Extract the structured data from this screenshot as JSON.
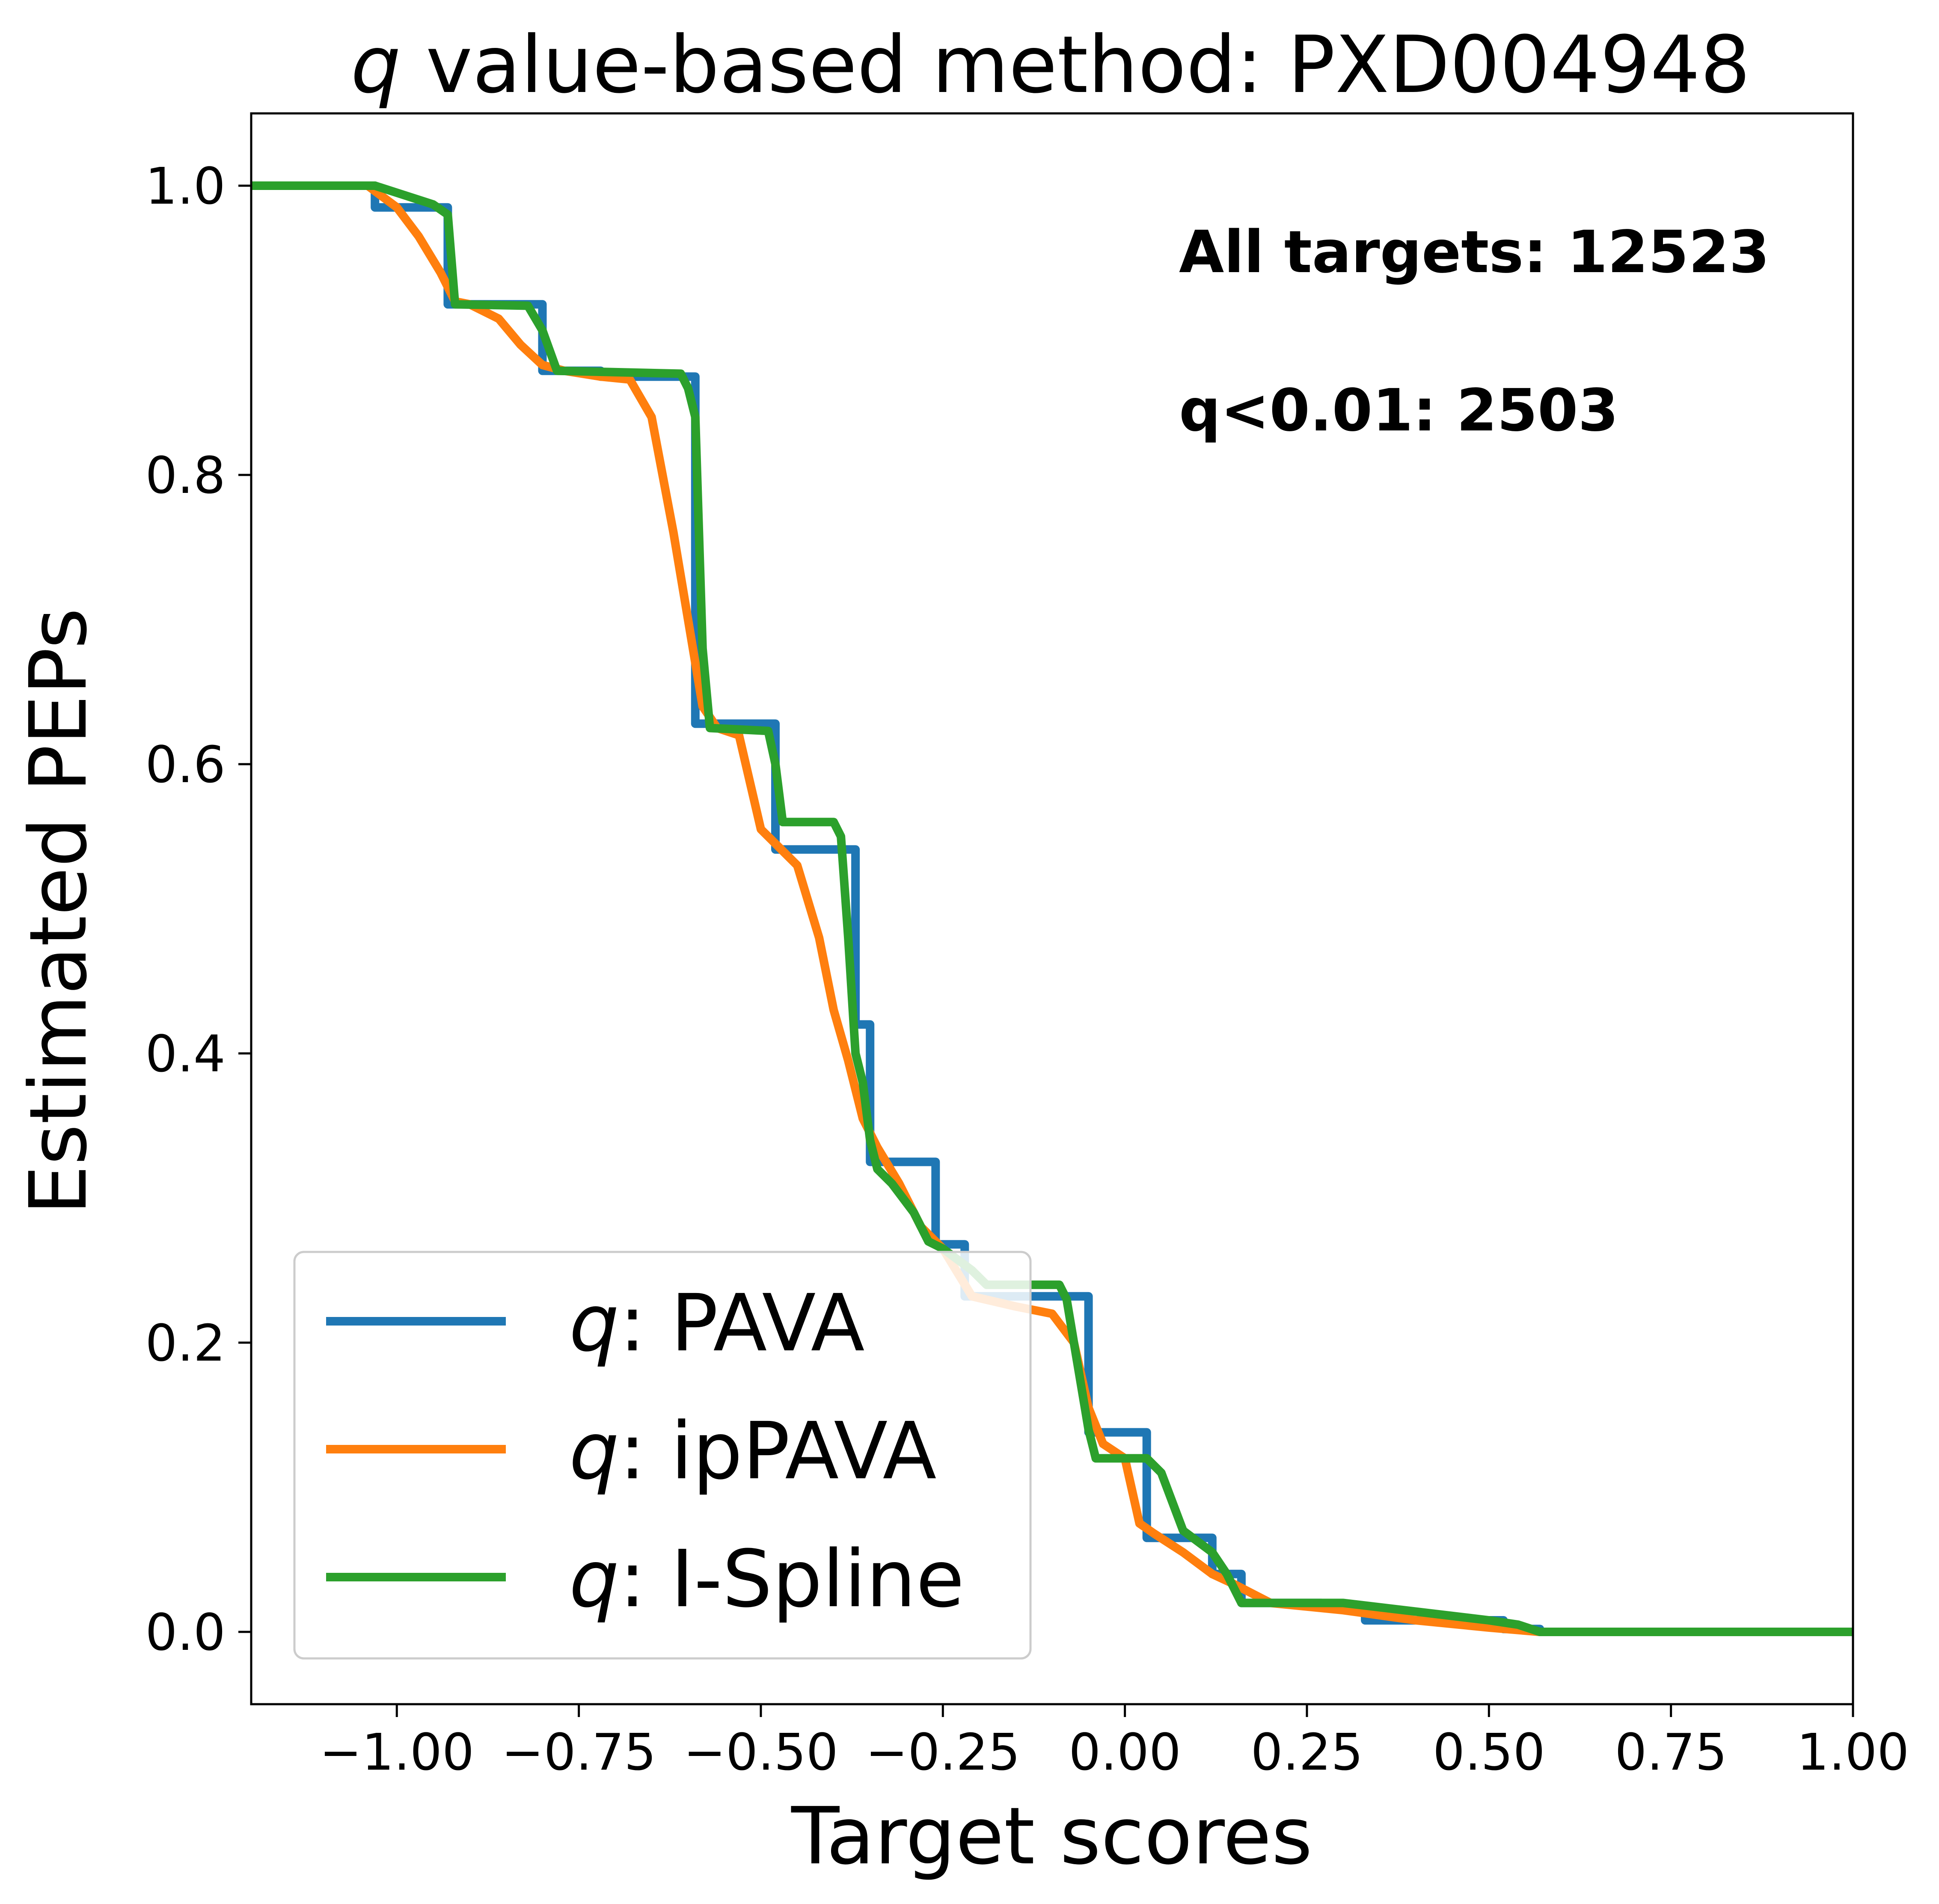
{
  "chart_data": {
    "type": "line",
    "title_prefix": "q",
    "title": " value-based method: PXD004948",
    "xlabel": "Target scores",
    "ylabel": "Estimated PEPs",
    "xlim": [
      -1.2,
      1.0
    ],
    "ylim": [
      -0.05,
      1.05
    ],
    "x_ticks": [
      -1.0,
      -0.75,
      -0.5,
      -0.25,
      0.0,
      0.25,
      0.5,
      0.75,
      1.0
    ],
    "x_tick_labels": [
      "−1.00",
      "−0.75",
      "−0.50",
      "−0.25",
      "0.00",
      "0.25",
      "0.50",
      "0.75",
      "1.00"
    ],
    "y_ticks": [
      0.0,
      0.2,
      0.4,
      0.6,
      0.8,
      1.0
    ],
    "y_tick_labels": [
      "0.0",
      "0.2",
      "0.4",
      "0.6",
      "0.8",
      "1.0"
    ],
    "grid": false,
    "legend_position": "lower-left",
    "annotations": [
      "All targets: 12523",
      "q<0.01: 2503"
    ],
    "series": [
      {
        "name": "q: PAVA",
        "label_prefix": "q",
        "label_rest": ": PAVA",
        "color": "#1f77b4",
        "step": true,
        "x": [
          -1.2,
          -1.03,
          -0.93,
          -0.8,
          -0.72,
          -0.59,
          -0.48,
          -0.37,
          -0.35,
          -0.26,
          -0.22,
          -0.09,
          -0.05,
          -0.03,
          0.03,
          0.08,
          0.12,
          0.16,
          0.2,
          0.27,
          0.33,
          0.45,
          0.52,
          0.57,
          1.0
        ],
        "y": [
          1.0,
          0.985,
          0.918,
          0.872,
          0.868,
          0.628,
          0.541,
          0.42,
          0.325,
          0.268,
          0.232,
          0.232,
          0.138,
          0.138,
          0.065,
          0.065,
          0.04,
          0.02,
          0.02,
          0.018,
          0.008,
          0.008,
          0.002,
          0.0,
          0.0
        ]
      },
      {
        "name": "q: ipPAVA",
        "label_prefix": "q",
        "label_rest": ": ipPAVA",
        "color": "#ff7f0e",
        "step": false,
        "x": [
          -1.2,
          -1.04,
          -1.0,
          -0.97,
          -0.94,
          -0.92,
          -0.9,
          -0.86,
          -0.83,
          -0.8,
          -0.77,
          -0.72,
          -0.68,
          -0.65,
          -0.62,
          -0.6,
          -0.58,
          -0.56,
          -0.53,
          -0.5,
          -0.48,
          -0.45,
          -0.42,
          -0.4,
          -0.38,
          -0.36,
          -0.34,
          -0.31,
          -0.28,
          -0.25,
          -0.21,
          -0.15,
          -0.1,
          -0.07,
          -0.05,
          -0.03,
          0.0,
          0.02,
          0.04,
          0.08,
          0.12,
          0.15,
          0.2,
          0.3,
          0.4,
          0.5,
          0.57,
          1.0
        ],
        "y": [
          1.0,
          1.0,
          0.985,
          0.965,
          0.94,
          0.92,
          0.918,
          0.908,
          0.89,
          0.876,
          0.872,
          0.868,
          0.866,
          0.84,
          0.76,
          0.7,
          0.64,
          0.625,
          0.62,
          0.555,
          0.545,
          0.53,
          0.48,
          0.43,
          0.395,
          0.355,
          0.335,
          0.31,
          0.28,
          0.265,
          0.232,
          0.225,
          0.22,
          0.2,
          0.155,
          0.13,
          0.12,
          0.075,
          0.068,
          0.055,
          0.04,
          0.033,
          0.02,
          0.015,
          0.008,
          0.003,
          0.0,
          0.0
        ]
      },
      {
        "name": "q: I-Spline",
        "label_prefix": "q",
        "label_rest": ": I-Spline",
        "color": "#2ca02c",
        "step": false,
        "x": [
          -1.2,
          -1.03,
          -0.95,
          -0.93,
          -0.92,
          -0.82,
          -0.8,
          -0.78,
          -0.61,
          -0.6,
          -0.59,
          -0.58,
          -0.57,
          -0.49,
          -0.48,
          -0.47,
          -0.4,
          -0.39,
          -0.38,
          -0.37,
          -0.36,
          -0.35,
          -0.34,
          -0.32,
          -0.29,
          -0.27,
          -0.25,
          -0.21,
          -0.19,
          -0.09,
          -0.08,
          -0.07,
          -0.05,
          -0.04,
          0.03,
          0.05,
          0.08,
          0.12,
          0.14,
          0.16,
          0.3,
          0.5,
          0.54,
          0.57,
          1.0
        ],
        "y": [
          1.0,
          1.0,
          0.987,
          0.98,
          0.918,
          0.917,
          0.9,
          0.872,
          0.87,
          0.86,
          0.84,
          0.68,
          0.625,
          0.623,
          0.6,
          0.56,
          0.56,
          0.55,
          0.48,
          0.4,
          0.38,
          0.34,
          0.32,
          0.31,
          0.29,
          0.27,
          0.265,
          0.25,
          0.24,
          0.24,
          0.23,
          0.2,
          0.14,
          0.12,
          0.12,
          0.11,
          0.07,
          0.055,
          0.04,
          0.02,
          0.02,
          0.008,
          0.005,
          0.0,
          0.0
        ]
      }
    ]
  }
}
